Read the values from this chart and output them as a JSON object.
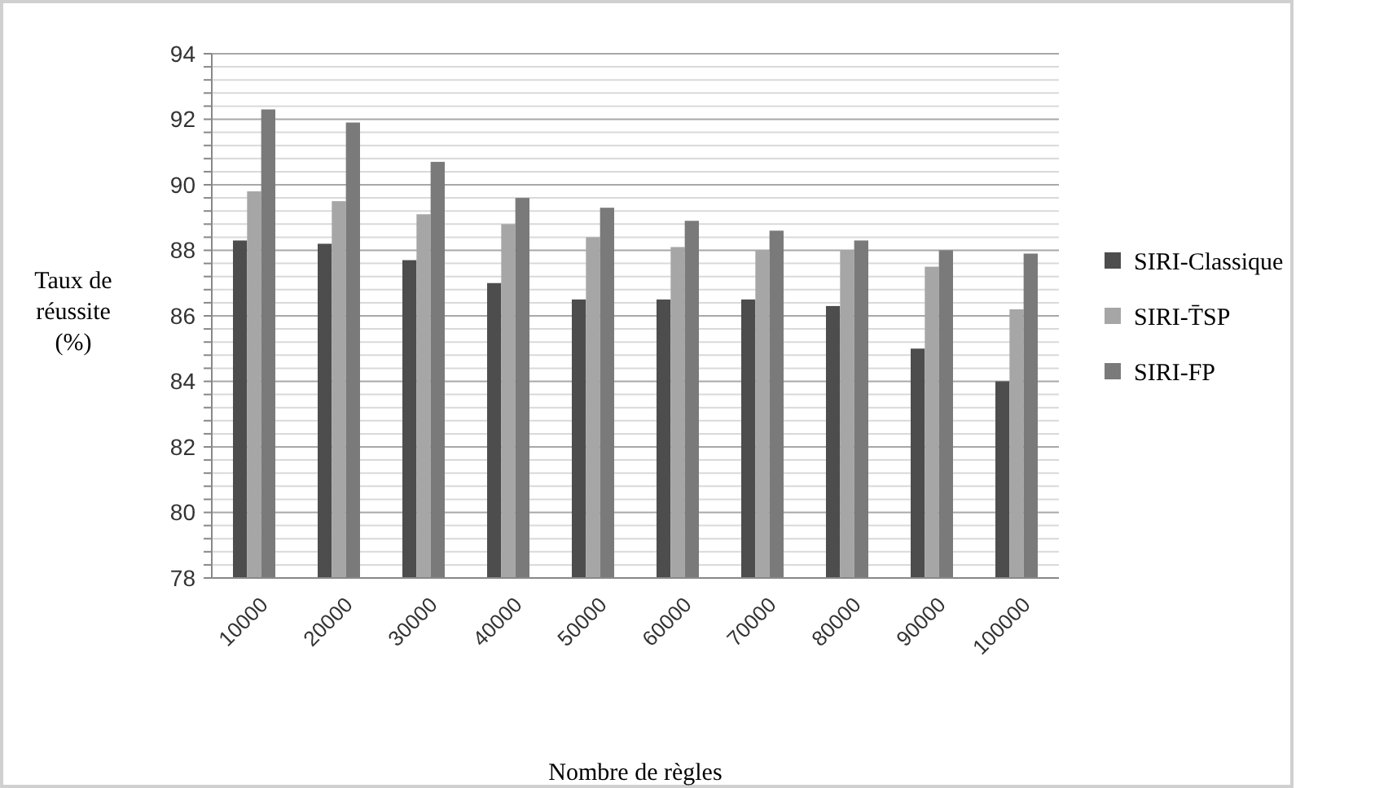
{
  "chart_data": {
    "type": "bar",
    "xlabel": "Nombre de règles",
    "ylabel": "Taux de réussite (%)",
    "categories": [
      "10000",
      "20000",
      "30000",
      "40000",
      "50000",
      "60000",
      "70000",
      "80000",
      "90000",
      "100000"
    ],
    "series": [
      {
        "name": "SIRI-Classique",
        "color": "#4d4d4d",
        "values": [
          88.3,
          88.2,
          87.7,
          87.0,
          86.5,
          86.5,
          86.5,
          86.3,
          85.0,
          84.0
        ]
      },
      {
        "name": "SIRI-T̄SP",
        "color": "#a6a6a6",
        "values": [
          89.8,
          89.5,
          89.1,
          88.8,
          88.4,
          88.1,
          88.0,
          88.0,
          87.5,
          86.2
        ]
      },
      {
        "name": "SIRI-FP",
        "color": "#7a7a7a",
        "values": [
          92.3,
          91.9,
          90.7,
          89.6,
          89.3,
          88.9,
          88.6,
          88.3,
          88.0,
          87.9
        ]
      }
    ],
    "ylim": [
      78,
      94
    ],
    "yticks": [
      78,
      {
        "value": 78.4,
        "label": null
      },
      {
        "value": 78.8,
        "label": null
      },
      {
        "value": 79.2,
        "label": null
      },
      {
        "value": 79.6,
        "label": null
      },
      80,
      {
        "value": 80.4,
        "label": null
      },
      {
        "value": 80.8,
        "label": null
      },
      {
        "value": 81.2,
        "label": null
      },
      {
        "value": 81.6,
        "label": null
      },
      82,
      {
        "value": 82.4,
        "label": null
      },
      {
        "value": 82.8,
        "label": null
      },
      {
        "value": 83.2,
        "label": null
      },
      {
        "value": 83.6,
        "label": null
      },
      84,
      {
        "value": 84.4,
        "label": null
      },
      {
        "value": 84.8,
        "label": null
      },
      {
        "value": 85.2,
        "label": null
      },
      {
        "value": 85.6,
        "label": null
      },
      86,
      {
        "value": 86.4,
        "label": null
      },
      {
        "value": 86.8,
        "label": null
      },
      {
        "value": 87.2,
        "label": null
      },
      {
        "value": 87.6,
        "label": null
      },
      88,
      {
        "value": 88.4,
        "label": null
      },
      {
        "value": 88.8,
        "label": null
      },
      {
        "value": 89.2,
        "label": null
      },
      {
        "value": 89.6,
        "label": null
      },
      90,
      {
        "value": 90.4,
        "label": null
      },
      {
        "value": 90.8,
        "label": null
      },
      {
        "value": 91.2,
        "label": null
      },
      {
        "value": 91.6,
        "label": null
      },
      92,
      {
        "value": 92.4,
        "label": null
      },
      {
        "value": 92.8,
        "label": null
      },
      {
        "value": 93.2,
        "label": null
      },
      {
        "value": 93.6,
        "label": null
      },
      94
    ],
    "grid": "y",
    "legend": "right"
  }
}
